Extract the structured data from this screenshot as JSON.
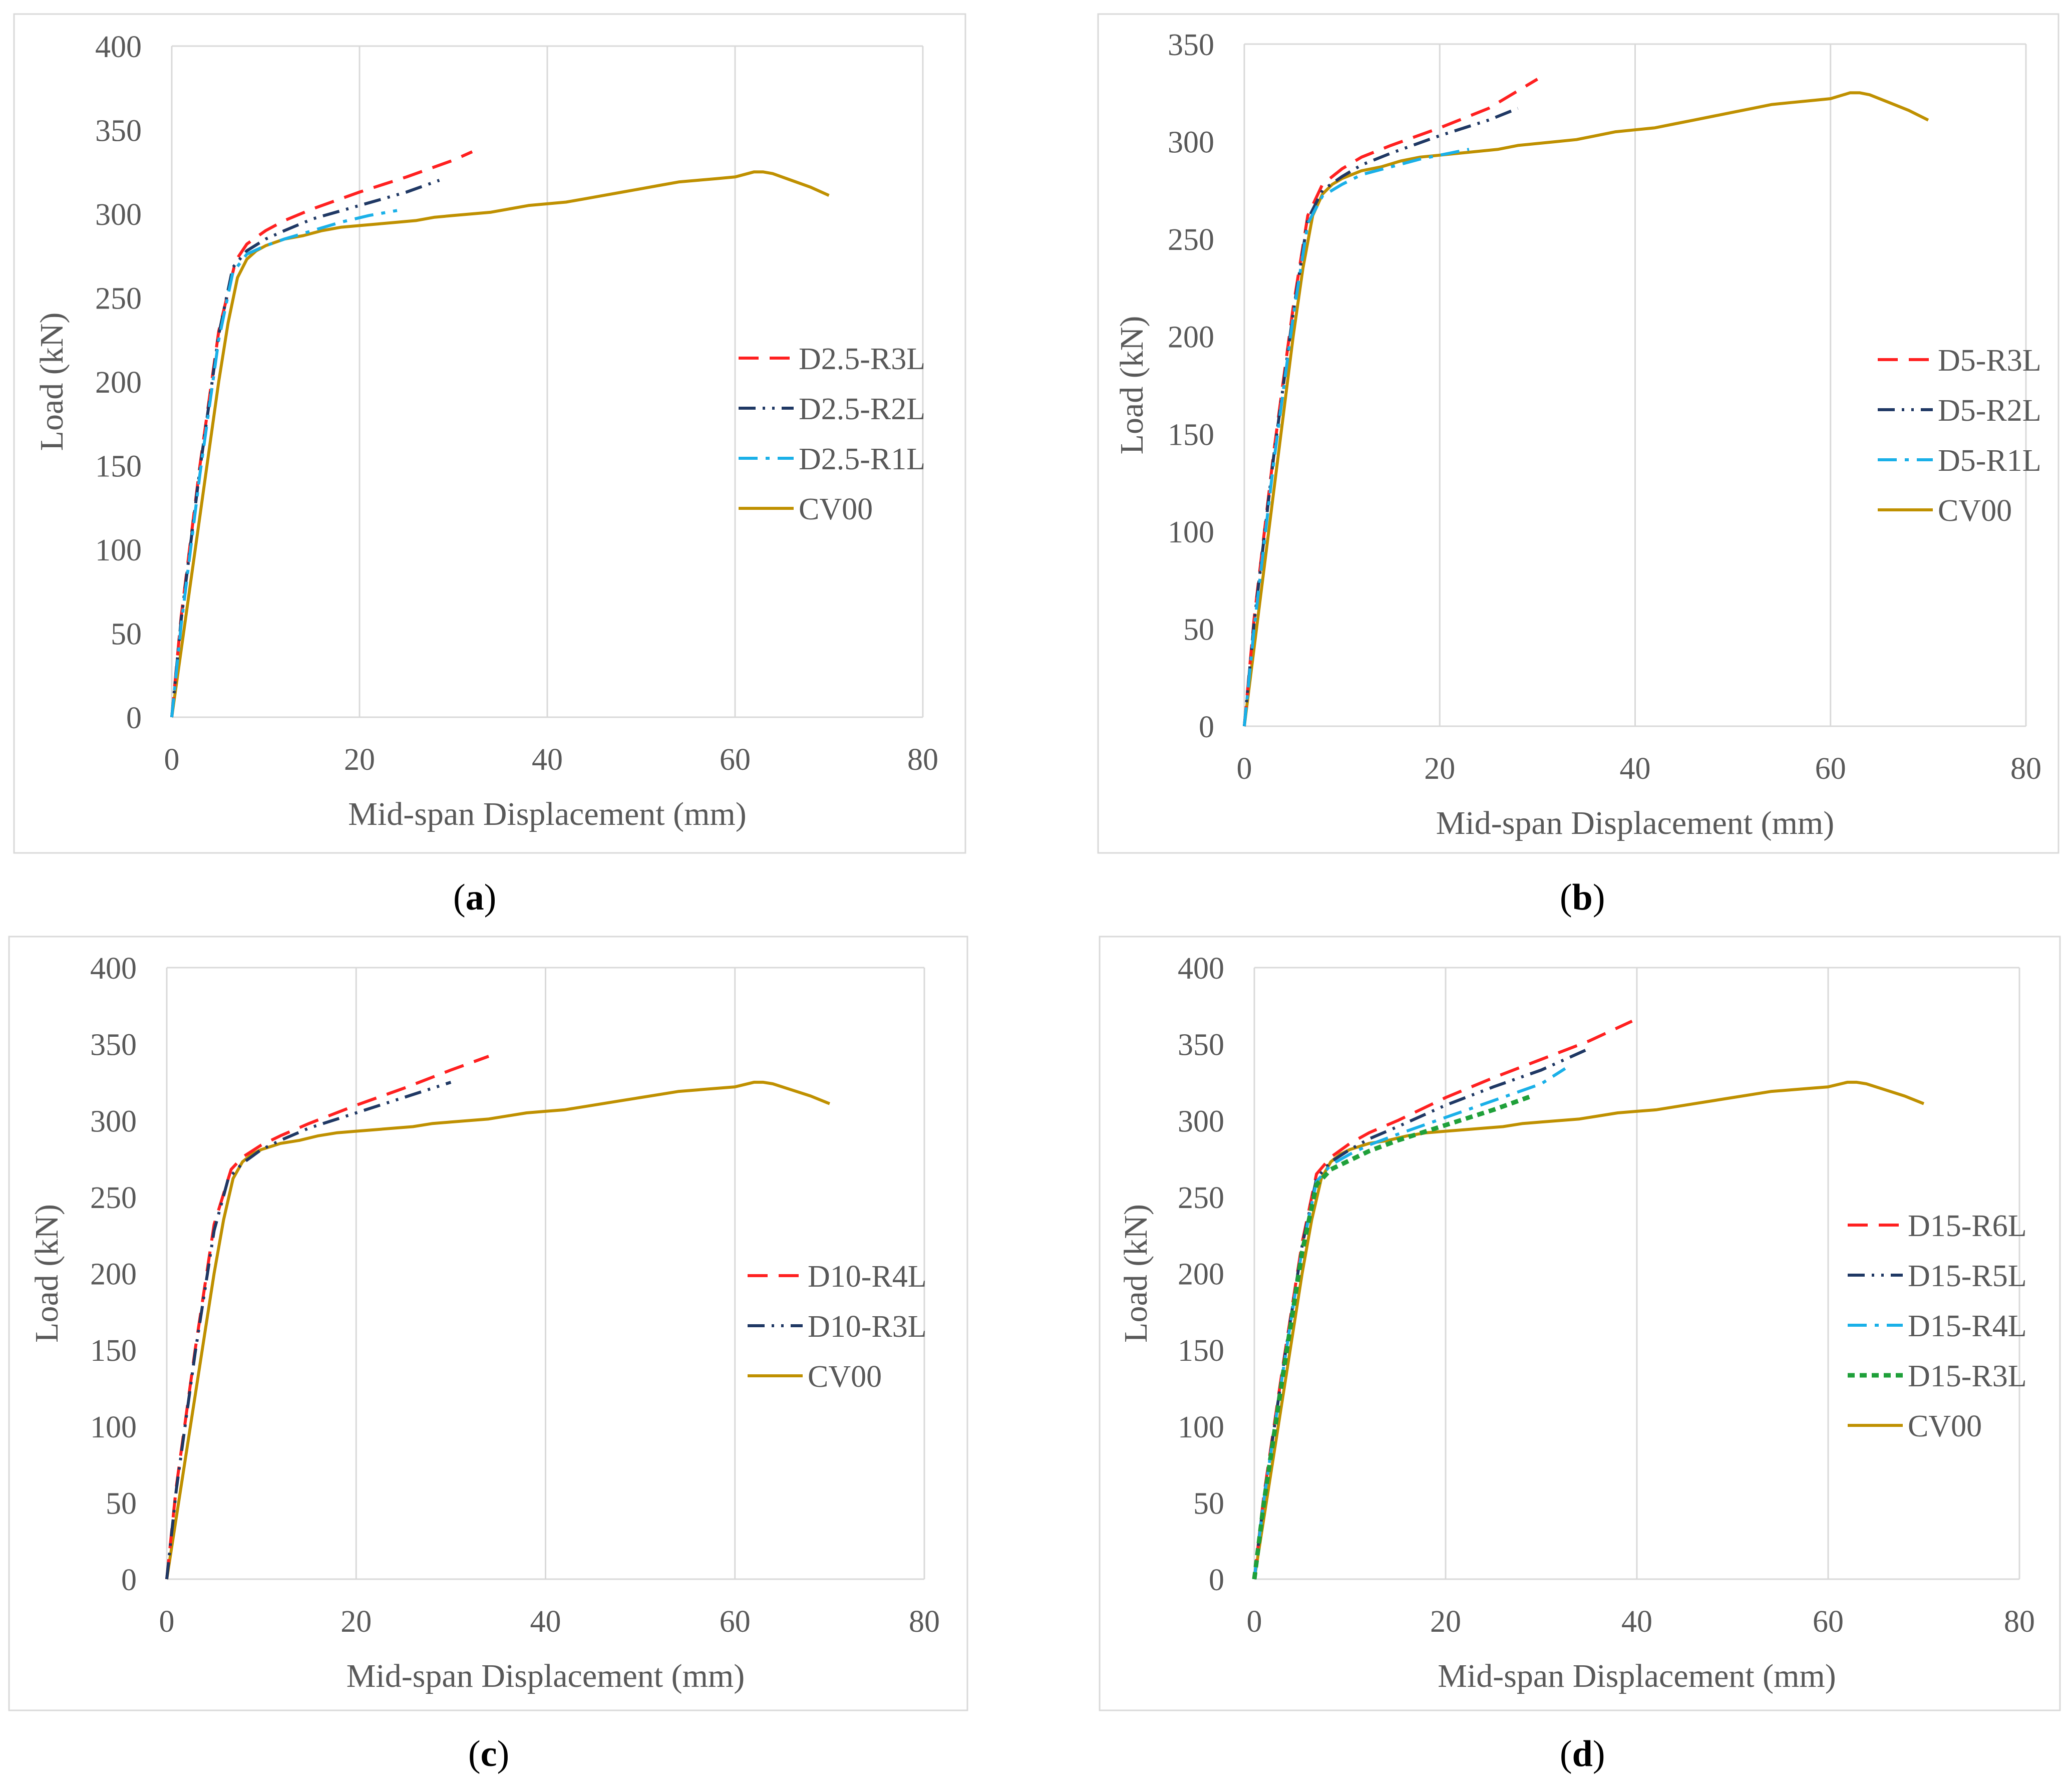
{
  "colors": {
    "red": "#ff2020",
    "navy": "#1f3864",
    "cyan": "#1ab0e8",
    "green": "#1fa03a",
    "gold": "#bf9000",
    "grid": "#d9d9d9",
    "frame": "#d9d9d9",
    "text": "#595959"
  },
  "chart_data": [
    {
      "panel": "a",
      "type": "line",
      "xlabel": "Mid-span Displacement (mm)",
      "ylabel": "Load (kN)",
      "xlim": [
        0,
        80
      ],
      "ylim": [
        0,
        400
      ],
      "xticks": [
        0,
        20,
        40,
        60,
        80
      ],
      "yticks": [
        0,
        50,
        100,
        150,
        200,
        250,
        300,
        350,
        400
      ],
      "grid": "vertical",
      "legend_position": "right",
      "series": [
        {
          "name": "D2.5-R3L",
          "color": "red",
          "dash": "dash",
          "x": [
            0,
            1,
            3,
            5,
            6.8,
            8,
            10,
            12,
            15,
            20,
            25,
            30,
            32
          ],
          "y": [
            0,
            60,
            150,
            230,
            272,
            282,
            290,
            296,
            303,
            313,
            322,
            332,
            337
          ]
        },
        {
          "name": "D2.5-R2L",
          "color": "navy",
          "dash": "dashdotdot",
          "x": [
            0,
            1,
            3,
            5,
            6.5,
            8,
            10,
            12,
            15,
            20,
            25,
            28.5
          ],
          "y": [
            0,
            58,
            148,
            228,
            268,
            278,
            285,
            290,
            297,
            305,
            313,
            320
          ]
        },
        {
          "name": "D2.5-R1L",
          "color": "cyan",
          "dash": "dashdot",
          "x": [
            0,
            1,
            3,
            5,
            6.5,
            8,
            10,
            12,
            15,
            18,
            21,
            24
          ],
          "y": [
            0,
            55,
            145,
            225,
            265,
            276,
            281,
            285,
            290,
            295,
            299,
            302
          ]
        },
        {
          "name": "CV00",
          "color": "gold",
          "dash": "solid",
          "x": [
            0,
            1,
            2,
            3,
            4,
            5,
            6,
            7,
            8,
            9,
            10,
            11,
            12,
            14,
            16,
            18,
            20,
            22,
            24,
            26,
            28,
            30,
            32,
            34,
            36,
            38,
            40,
            42,
            44,
            46,
            48,
            50,
            52,
            54,
            56,
            58,
            60,
            62,
            63,
            64,
            66,
            68,
            70
          ],
          "y": [
            0,
            40,
            80,
            120,
            160,
            200,
            235,
            262,
            273,
            278,
            281,
            283,
            285,
            287,
            290,
            292,
            293,
            294,
            295,
            296,
            298,
            299,
            300,
            301,
            303,
            305,
            306,
            307,
            309,
            311,
            313,
            315,
            317,
            319,
            320,
            321,
            322,
            325,
            325,
            324,
            320,
            316,
            311
          ]
        }
      ],
      "caption_label": "a"
    },
    {
      "panel": "b",
      "type": "line",
      "xlabel": "Mid-span Displacement (mm)",
      "ylabel": "Load (kN)",
      "xlim": [
        0,
        80
      ],
      "ylim": [
        0,
        350
      ],
      "xticks": [
        0,
        20,
        40,
        60,
        80
      ],
      "yticks": [
        0,
        50,
        100,
        150,
        200,
        250,
        300,
        350
      ],
      "grid": "vertical",
      "legend_position": "right",
      "series": [
        {
          "name": "D5-R3L",
          "color": "red",
          "dash": "dash",
          "x": [
            0,
            1,
            3,
            5,
            6.5,
            8,
            10,
            12,
            15,
            20,
            25,
            30
          ],
          "y": [
            0,
            55,
            140,
            215,
            262,
            278,
            286,
            292,
            298,
            307,
            317,
            332
          ]
        },
        {
          "name": "D5-R2L",
          "color": "navy",
          "dash": "dashdotdot",
          "x": [
            0,
            1,
            3,
            5,
            6.5,
            8,
            10,
            12,
            15,
            20,
            25,
            28
          ],
          "y": [
            0,
            53,
            138,
            212,
            260,
            275,
            282,
            288,
            294,
            303,
            311,
            317
          ]
        },
        {
          "name": "D5-R1L",
          "color": "cyan",
          "dash": "dashdot",
          "x": [
            0,
            1,
            3,
            5,
            6.5,
            8,
            10,
            12,
            15,
            18,
            21,
            23
          ],
          "y": [
            0,
            50,
            135,
            210,
            258,
            272,
            278,
            283,
            287,
            291,
            294,
            296
          ]
        },
        {
          "name": "CV00",
          "color": "gold",
          "dash": "solid",
          "x": [
            0,
            1,
            2,
            3,
            4,
            5,
            6,
            7,
            8,
            9,
            10,
            11,
            12,
            14,
            16,
            18,
            20,
            22,
            24,
            26,
            28,
            30,
            32,
            34,
            36,
            38,
            40,
            42,
            44,
            46,
            48,
            50,
            52,
            54,
            56,
            58,
            60,
            62,
            63,
            64,
            66,
            68,
            70
          ],
          "y": [
            0,
            40,
            80,
            120,
            160,
            200,
            235,
            262,
            273,
            278,
            281,
            283,
            285,
            287,
            290,
            292,
            293,
            294,
            295,
            296,
            298,
            299,
            300,
            301,
            303,
            305,
            306,
            307,
            309,
            311,
            313,
            315,
            317,
            319,
            320,
            321,
            322,
            325,
            325,
            324,
            320,
            316,
            311
          ]
        }
      ],
      "caption_label": "b"
    },
    {
      "panel": "c",
      "type": "line",
      "xlabel": "Mid-span Displacement (mm)",
      "ylabel": "Load (kN)",
      "xlim": [
        0,
        80
      ],
      "ylim": [
        0,
        400
      ],
      "xticks": [
        0,
        20,
        40,
        60,
        80
      ],
      "yticks": [
        0,
        50,
        100,
        150,
        200,
        250,
        300,
        350,
        400
      ],
      "grid": "vertical",
      "legend_position": "right",
      "series": [
        {
          "name": "D10-R4L",
          "color": "red",
          "dash": "dash",
          "x": [
            0,
            1,
            3,
            5,
            6.8,
            8,
            10,
            12,
            15,
            20,
            25,
            30,
            34
          ],
          "y": [
            0,
            60,
            150,
            232,
            268,
            276,
            284,
            290,
            298,
            310,
            321,
            333,
            342
          ]
        },
        {
          "name": "D10-R3L",
          "color": "navy",
          "dash": "dashdotdot",
          "x": [
            0,
            1,
            3,
            5,
            6.5,
            8,
            10,
            12,
            15,
            20,
            25,
            30
          ],
          "y": [
            0,
            58,
            148,
            228,
            262,
            272,
            281,
            287,
            295,
            305,
            315,
            325
          ]
        },
        {
          "name": "CV00",
          "color": "gold",
          "dash": "solid",
          "x": [
            0,
            1,
            2,
            3,
            4,
            5,
            6,
            7,
            8,
            9,
            10,
            11,
            12,
            14,
            16,
            18,
            20,
            22,
            24,
            26,
            28,
            30,
            32,
            34,
            36,
            38,
            40,
            42,
            44,
            46,
            48,
            50,
            52,
            54,
            56,
            58,
            60,
            62,
            63,
            64,
            66,
            68,
            70
          ],
          "y": [
            0,
            40,
            80,
            120,
            160,
            200,
            235,
            262,
            273,
            278,
            281,
            283,
            285,
            287,
            290,
            292,
            293,
            294,
            295,
            296,
            298,
            299,
            300,
            301,
            303,
            305,
            306,
            307,
            309,
            311,
            313,
            315,
            317,
            319,
            320,
            321,
            322,
            325,
            325,
            324,
            320,
            316,
            311
          ]
        }
      ],
      "caption_label": "c"
    },
    {
      "panel": "d",
      "type": "line",
      "xlabel": "Mid-span Displacement (mm)",
      "ylabel": "Load (kN)",
      "xlim": [
        0,
        80
      ],
      "ylim": [
        0,
        400
      ],
      "xticks": [
        0,
        20,
        40,
        60,
        80
      ],
      "yticks": [
        0,
        50,
        100,
        150,
        200,
        250,
        300,
        350,
        400
      ],
      "grid": "vertical",
      "legend_position": "right",
      "series": [
        {
          "name": "D15-R6L",
          "color": "red",
          "dash": "dash",
          "x": [
            0,
            1,
            3,
            5,
            6.5,
            8,
            10,
            12,
            15,
            20,
            25,
            30,
            35,
            39.5
          ],
          "y": [
            0,
            55,
            140,
            220,
            265,
            276,
            285,
            292,
            300,
            315,
            328,
            340,
            352,
            365
          ]
        },
        {
          "name": "D15-R5L",
          "color": "navy",
          "dash": "dashdotdot",
          "x": [
            0,
            1,
            3,
            5,
            6.5,
            8,
            10,
            12,
            15,
            20,
            25,
            30,
            35
          ],
          "y": [
            0,
            53,
            138,
            218,
            262,
            273,
            281,
            288,
            296,
            310,
            322,
            333,
            347
          ]
        },
        {
          "name": "D15-R4L",
          "color": "cyan",
          "dash": "dashdot",
          "x": [
            0,
            1,
            3,
            5,
            6.5,
            8,
            10,
            12,
            15,
            20,
            25,
            30,
            32.5
          ],
          "y": [
            0,
            52,
            136,
            216,
            260,
            271,
            278,
            284,
            291,
            302,
            313,
            324,
            334
          ]
        },
        {
          "name": "D15-R3L",
          "color": "green",
          "dash": "dot",
          "x": [
            0,
            1,
            3,
            5,
            6.5,
            8,
            10,
            12,
            15,
            20,
            25,
            29
          ],
          "y": [
            0,
            50,
            134,
            214,
            258,
            268,
            274,
            280,
            287,
            297,
            307,
            316
          ]
        },
        {
          "name": "CV00",
          "color": "gold",
          "dash": "solid",
          "x": [
            0,
            1,
            2,
            3,
            4,
            5,
            6,
            7,
            8,
            9,
            10,
            11,
            12,
            14,
            16,
            18,
            20,
            22,
            24,
            26,
            28,
            30,
            32,
            34,
            36,
            38,
            40,
            42,
            44,
            46,
            48,
            50,
            52,
            54,
            56,
            58,
            60,
            62,
            63,
            64,
            66,
            68,
            70
          ],
          "y": [
            0,
            40,
            80,
            120,
            160,
            200,
            235,
            262,
            273,
            278,
            281,
            283,
            285,
            287,
            290,
            292,
            293,
            294,
            295,
            296,
            298,
            299,
            300,
            301,
            303,
            305,
            306,
            307,
            309,
            311,
            313,
            315,
            317,
            319,
            320,
            321,
            322,
            325,
            325,
            324,
            320,
            316,
            311
          ]
        }
      ],
      "caption_label": "d"
    }
  ]
}
